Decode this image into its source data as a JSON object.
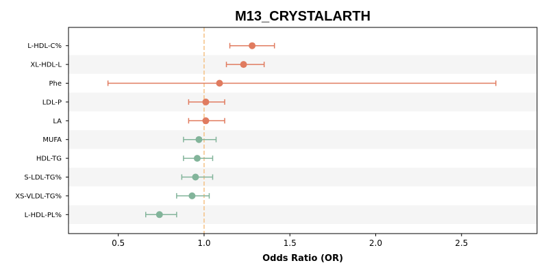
{
  "chart_data": {
    "type": "forest",
    "title": "M13_CRYSTALARTH",
    "xlabel": "Odds Ratio (OR)",
    "xlim": [
      0.21,
      2.94
    ],
    "xticks": [
      0.5,
      1.0,
      1.5,
      2.0,
      2.5
    ],
    "xtick_labels": [
      "0.5",
      "1.0",
      "1.5",
      "2.0",
      "2.5"
    ],
    "reference_line": 1.0,
    "reference_color": "#f5c083",
    "row_band_color": "#f5f5f5",
    "colors": {
      "risk": "#e07b5f",
      "protective": "#82b49a"
    },
    "rows": [
      {
        "label": "L-HDL-C%",
        "or": 1.28,
        "lo": 1.15,
        "hi": 1.41,
        "group": "risk"
      },
      {
        "label": "XL-HDL-L",
        "or": 1.23,
        "lo": 1.13,
        "hi": 1.35,
        "group": "risk"
      },
      {
        "label": "Phe",
        "or": 1.09,
        "lo": 0.44,
        "hi": 2.7,
        "group": "risk"
      },
      {
        "label": "LDL-P",
        "or": 1.01,
        "lo": 0.91,
        "hi": 1.12,
        "group": "risk"
      },
      {
        "label": "LA",
        "or": 1.01,
        "lo": 0.91,
        "hi": 1.12,
        "group": "risk"
      },
      {
        "label": "MUFA",
        "or": 0.97,
        "lo": 0.88,
        "hi": 1.07,
        "group": "protective"
      },
      {
        "label": "HDL-TG",
        "or": 0.96,
        "lo": 0.88,
        "hi": 1.05,
        "group": "protective"
      },
      {
        "label": "S-LDL-TG%",
        "or": 0.95,
        "lo": 0.87,
        "hi": 1.05,
        "group": "protective"
      },
      {
        "label": "XS-VLDL-TG%",
        "or": 0.93,
        "lo": 0.84,
        "hi": 1.03,
        "group": "protective"
      },
      {
        "label": "L-HDL-PL%",
        "or": 0.74,
        "lo": 0.66,
        "hi": 0.84,
        "group": "protective"
      }
    ]
  }
}
